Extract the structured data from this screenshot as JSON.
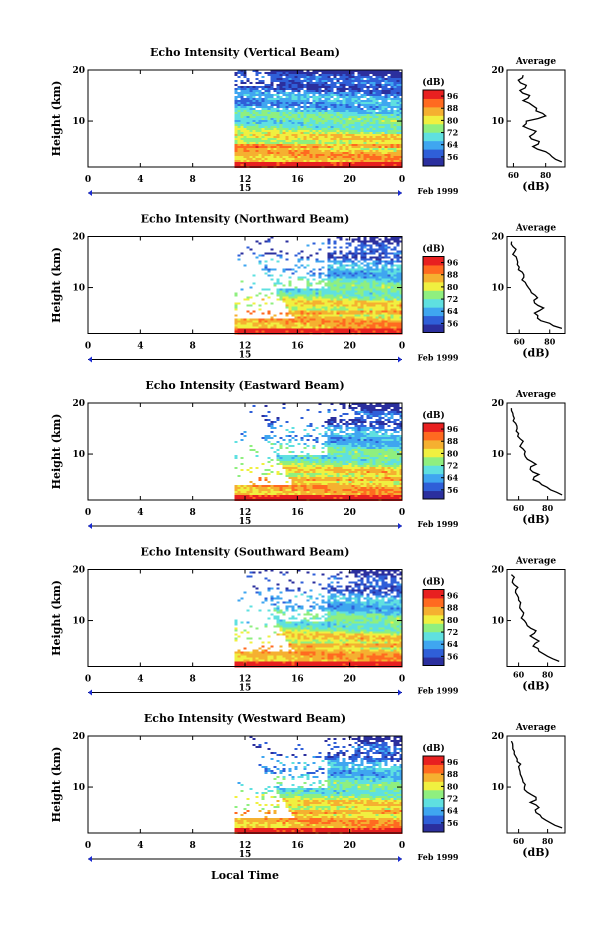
{
  "figure": {
    "xlabel": "Local Time",
    "date_label": "15",
    "month_label": "Feb 1999",
    "colorbar_unit": "(dB)",
    "colorbar_ticks": [
      "56",
      "64",
      "72",
      "80",
      "88",
      "96"
    ],
    "colorbar_range": [
      50,
      100
    ],
    "colors": {
      "scale": [
        "#2b2f9e",
        "#2f5fd8",
        "#3fa6f0",
        "#5fe0e0",
        "#8fef7f",
        "#f0f040",
        "#f5b030",
        "#ff6a20",
        "#e82020"
      ]
    }
  },
  "chart_data": [
    {
      "type": "heatmap",
      "title": "Echo Intensity (Vertical Beam)",
      "ylabel": "Height (km)",
      "x_ticks": [
        "0",
        "4",
        "8",
        "12",
        "16",
        "20",
        "0"
      ],
      "xlim": [
        0,
        24
      ],
      "y_ticks": [
        "10",
        "20"
      ],
      "ylim": [
        1,
        20
      ],
      "data_start_hour": 11.2,
      "data_end_hour": 24,
      "profile": {
        "title": "Average",
        "xlabel": "(dB)",
        "x_ticks": [
          "60",
          "80"
        ],
        "xlim": [
          56,
          92
        ],
        "heights": [
          2,
          3,
          4,
          5,
          6,
          7,
          8,
          9,
          10,
          11,
          12,
          13,
          14,
          15,
          16,
          17,
          18,
          19
        ],
        "values": [
          90,
          84,
          80,
          72,
          76,
          70,
          74,
          66,
          68,
          80,
          74,
          72,
          66,
          70,
          64,
          68,
          63,
          66
        ]
      }
    },
    {
      "type": "heatmap",
      "title": "Echo Intensity (Northward Beam)",
      "ylabel": "Height (km)",
      "x_ticks": [
        "0",
        "4",
        "8",
        "12",
        "16",
        "20",
        "0"
      ],
      "xlim": [
        0,
        24
      ],
      "y_ticks": [
        "10",
        "20"
      ],
      "ylim": [
        1,
        20
      ],
      "data_start_hour": 11.2,
      "data_end_hour": 24,
      "profile": {
        "title": "Average",
        "xlabel": "(dB)",
        "x_ticks": [
          "60",
          "80"
        ],
        "xlim": [
          52,
          90
        ],
        "heights": [
          2,
          3,
          4,
          5,
          6,
          7,
          8,
          9,
          10,
          11,
          12,
          13,
          14,
          15,
          16,
          17,
          18,
          19
        ],
        "values": [
          88,
          80,
          72,
          70,
          76,
          70,
          72,
          68,
          66,
          64,
          63,
          62,
          60,
          59,
          58,
          57,
          56,
          55
        ]
      }
    },
    {
      "type": "heatmap",
      "title": "Echo Intensity (Eastward Beam)",
      "ylabel": "Height (km)",
      "x_ticks": [
        "0",
        "4",
        "8",
        "12",
        "16",
        "20",
        "0"
      ],
      "xlim": [
        0,
        24
      ],
      "y_ticks": [
        "10",
        "20"
      ],
      "ylim": [
        1,
        20
      ],
      "data_start_hour": 11.2,
      "data_end_hour": 24,
      "profile": {
        "title": "Average",
        "xlabel": "(dB)",
        "x_ticks": [
          "60",
          "80"
        ],
        "xlim": [
          52,
          92
        ],
        "heights": [
          2,
          3,
          4,
          5,
          6,
          7,
          8,
          9,
          10,
          11,
          12,
          13,
          14,
          15,
          16,
          17,
          18,
          19
        ],
        "values": [
          90,
          82,
          76,
          70,
          74,
          68,
          72,
          66,
          64,
          63,
          62,
          61,
          60,
          59,
          58,
          57,
          56,
          55
        ]
      }
    },
    {
      "type": "heatmap",
      "title": "Echo Intensity (Southward Beam)",
      "ylabel": "Height (km)",
      "x_ticks": [
        "0",
        "4",
        "8",
        "12",
        "16",
        "20",
        "0"
      ],
      "xlim": [
        0,
        24
      ],
      "y_ticks": [
        "10",
        "20"
      ],
      "ylim": [
        1,
        20
      ],
      "data_start_hour": 11.2,
      "data_end_hour": 24,
      "profile": {
        "title": "Average",
        "xlabel": "(dB)",
        "x_ticks": [
          "60",
          "80"
        ],
        "xlim": [
          52,
          92
        ],
        "heights": [
          2,
          3,
          4,
          5,
          6,
          7,
          8,
          9,
          10,
          11,
          12,
          13,
          14,
          15,
          16,
          17,
          18,
          19
        ],
        "values": [
          88,
          80,
          74,
          70,
          74,
          68,
          72,
          66,
          64,
          63,
          62,
          61,
          60,
          59,
          58,
          57,
          56,
          55
        ]
      }
    },
    {
      "type": "heatmap",
      "title": "Echo Intensity (Westward Beam)",
      "ylabel": "Height (km)",
      "x_ticks": [
        "0",
        "4",
        "8",
        "12",
        "16",
        "20",
        "0"
      ],
      "xlim": [
        0,
        24
      ],
      "y_ticks": [
        "10",
        "20"
      ],
      "ylim": [
        1,
        20
      ],
      "data_start_hour": 11.2,
      "data_end_hour": 24,
      "profile": {
        "title": "Average",
        "xlabel": "(dB)",
        "x_ticks": [
          "60",
          "80"
        ],
        "xlim": [
          52,
          92
        ],
        "heights": [
          2,
          3,
          4,
          5,
          6,
          7,
          8,
          9,
          10,
          11,
          12,
          13,
          14,
          15,
          16,
          17,
          18,
          19
        ],
        "values": [
          90,
          82,
          76,
          72,
          74,
          68,
          72,
          66,
          64,
          63,
          62,
          61,
          60,
          59,
          58,
          57,
          56,
          55
        ]
      }
    }
  ]
}
